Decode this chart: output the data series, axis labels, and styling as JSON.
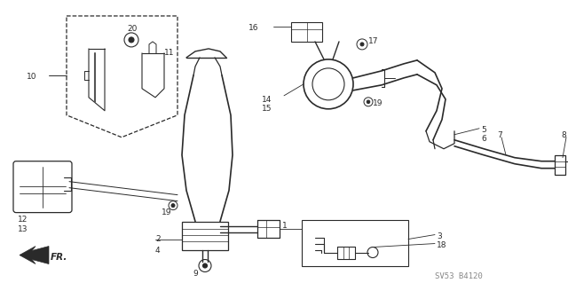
{
  "bg_color": "#ffffff",
  "diagram_color": "#2a2a2a",
  "watermark": "SV53 B4120",
  "watermark_color": "#888888",
  "fig_width": 6.4,
  "fig_height": 3.19,
  "dpi": 100
}
